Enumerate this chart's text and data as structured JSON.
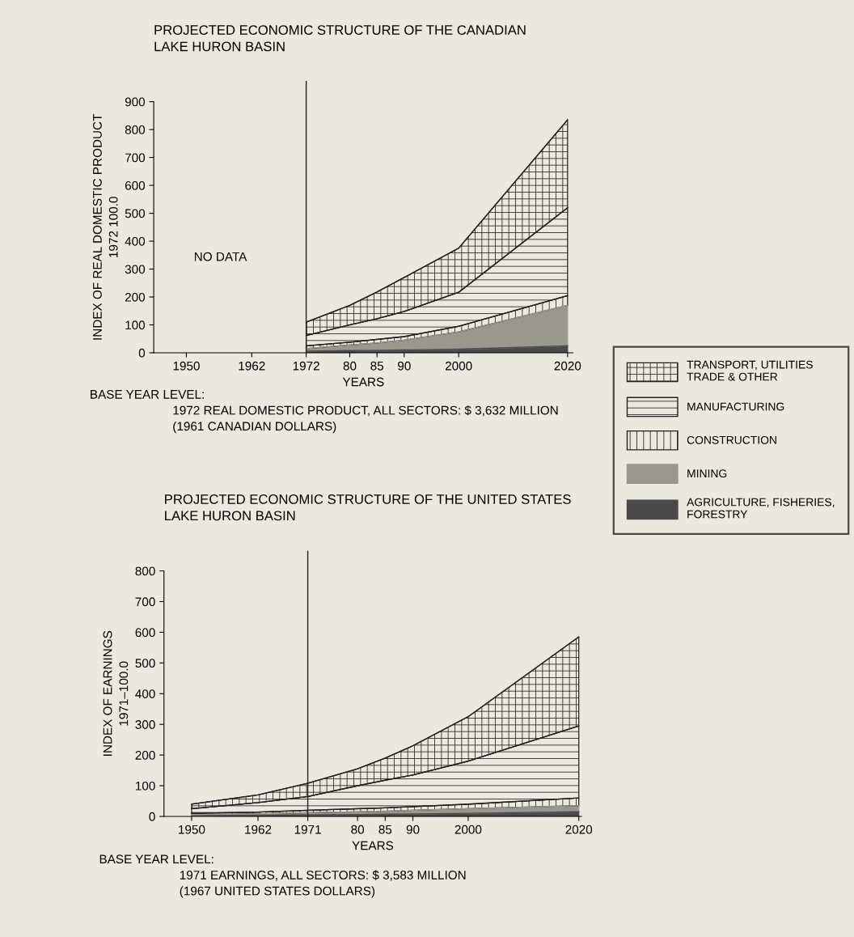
{
  "chart_data": [
    {
      "type": "area",
      "stacked": true,
      "title": "PROJECTED ECONOMIC STRUCTURE OF THE CANADIAN\nLAKE HURON BASIN",
      "xlabel": "YEARS",
      "ylabel": "INDEX OF REAL DOMESTIC PRODUCT\n1972 100.0",
      "x": [
        1972,
        1980,
        1985,
        1990,
        2000,
        2020
      ],
      "series": [
        {
          "name": "AGRICULTURE, FISHERIES,\nFORESTRY",
          "color": "#4a4a4a",
          "values": [
            6,
            8,
            9,
            10,
            13,
            25
          ]
        },
        {
          "name": "MINING",
          "color": "#9a978f",
          "values": [
            9,
            20,
            26,
            35,
            62,
            145
          ]
        },
        {
          "name": "CONSTRUCTION",
          "color": "#222222",
          "values": [
            10,
            10,
            13,
            13,
            20,
            35
          ]
        },
        {
          "name": "MANUFACTURING",
          "color": "#222222",
          "values": [
            37,
            62,
            74,
            90,
            122,
            315
          ]
        },
        {
          "name": "TRANSPORT, UTILITIES\nTRADE & OTHER",
          "color": "#222222",
          "values": [
            48,
            70,
            96,
            122,
            158,
            315
          ]
        }
      ],
      "xlim": [
        1944,
        2021
      ],
      "xticks": [
        1950,
        1962,
        1972,
        {
          "value": 1980,
          "label": "80"
        },
        {
          "value": 1985,
          "label": "85"
        },
        {
          "value": 1990,
          "label": "90"
        },
        2000,
        2020
      ],
      "ylim": [
        0,
        900
      ],
      "yticks": [
        0,
        100,
        200,
        300,
        400,
        500,
        600,
        700,
        800,
        900
      ],
      "ref_lines": [
        {
          "axis": "x",
          "value": 1972,
          "label": null
        }
      ],
      "annotations": [
        "NO DATA",
        "BASE YEAR LEVEL:",
        "1972 REAL DOMESTIC PRODUCT, ALL SECTORS: $ 3,632 MILLION",
        "(1961 CANADIAN DOLLARS)"
      ],
      "legend": "right",
      "grid": false
    },
    {
      "type": "area",
      "stacked": true,
      "title": "PROJECTED ECONOMIC STRUCTURE OF THE UNITED STATES\nLAKE HURON BASIN",
      "xlabel": "YEARS",
      "ylabel": "INDEX OF EARNINGS\n1971–100.0",
      "x": [
        1950,
        1962,
        1971,
        1980,
        1985,
        1990,
        2000,
        2020
      ],
      "series": [
        {
          "color": "#4a4a4a",
          "values": [
            3,
            4,
            5,
            6,
            7,
            8,
            10,
            15
          ]
        },
        {
          "color": "#9a978f",
          "values": [
            3,
            4,
            7,
            9,
            10,
            12,
            15,
            20
          ]
        },
        {
          "color": "#222222",
          "values": [
            4,
            6,
            8,
            10,
            11,
            12,
            15,
            25
          ]
        },
        {
          "color": "#222222",
          "values": [
            15,
            31,
            45,
            75,
            90,
            103,
            140,
            235
          ]
        },
        {
          "color": "#222222",
          "values": [
            15,
            25,
            43,
            55,
            72,
            95,
            145,
            290
          ]
        }
      ],
      "xlim": [
        1945,
        2020.5
      ],
      "xticks": [
        1950,
        1962,
        1971,
        {
          "value": 1980,
          "label": "80"
        },
        {
          "value": 1985,
          "label": "85"
        },
        {
          "value": 1990,
          "label": "90"
        },
        2000,
        2020
      ],
      "ylim": [
        0,
        800
      ],
      "yticks": [
        0,
        100,
        200,
        300,
        400,
        500,
        600,
        700,
        800
      ],
      "ref_lines": [
        {
          "axis": "x",
          "value": 1971,
          "label": null
        }
      ],
      "annotations": [
        "BASE YEAR LEVEL:",
        "1971 EARNINGS, ALL SECTORS: $ 3,583 MILLION",
        "(1967 UNITED STATES DOLLARS)"
      ],
      "grid": false
    }
  ]
}
